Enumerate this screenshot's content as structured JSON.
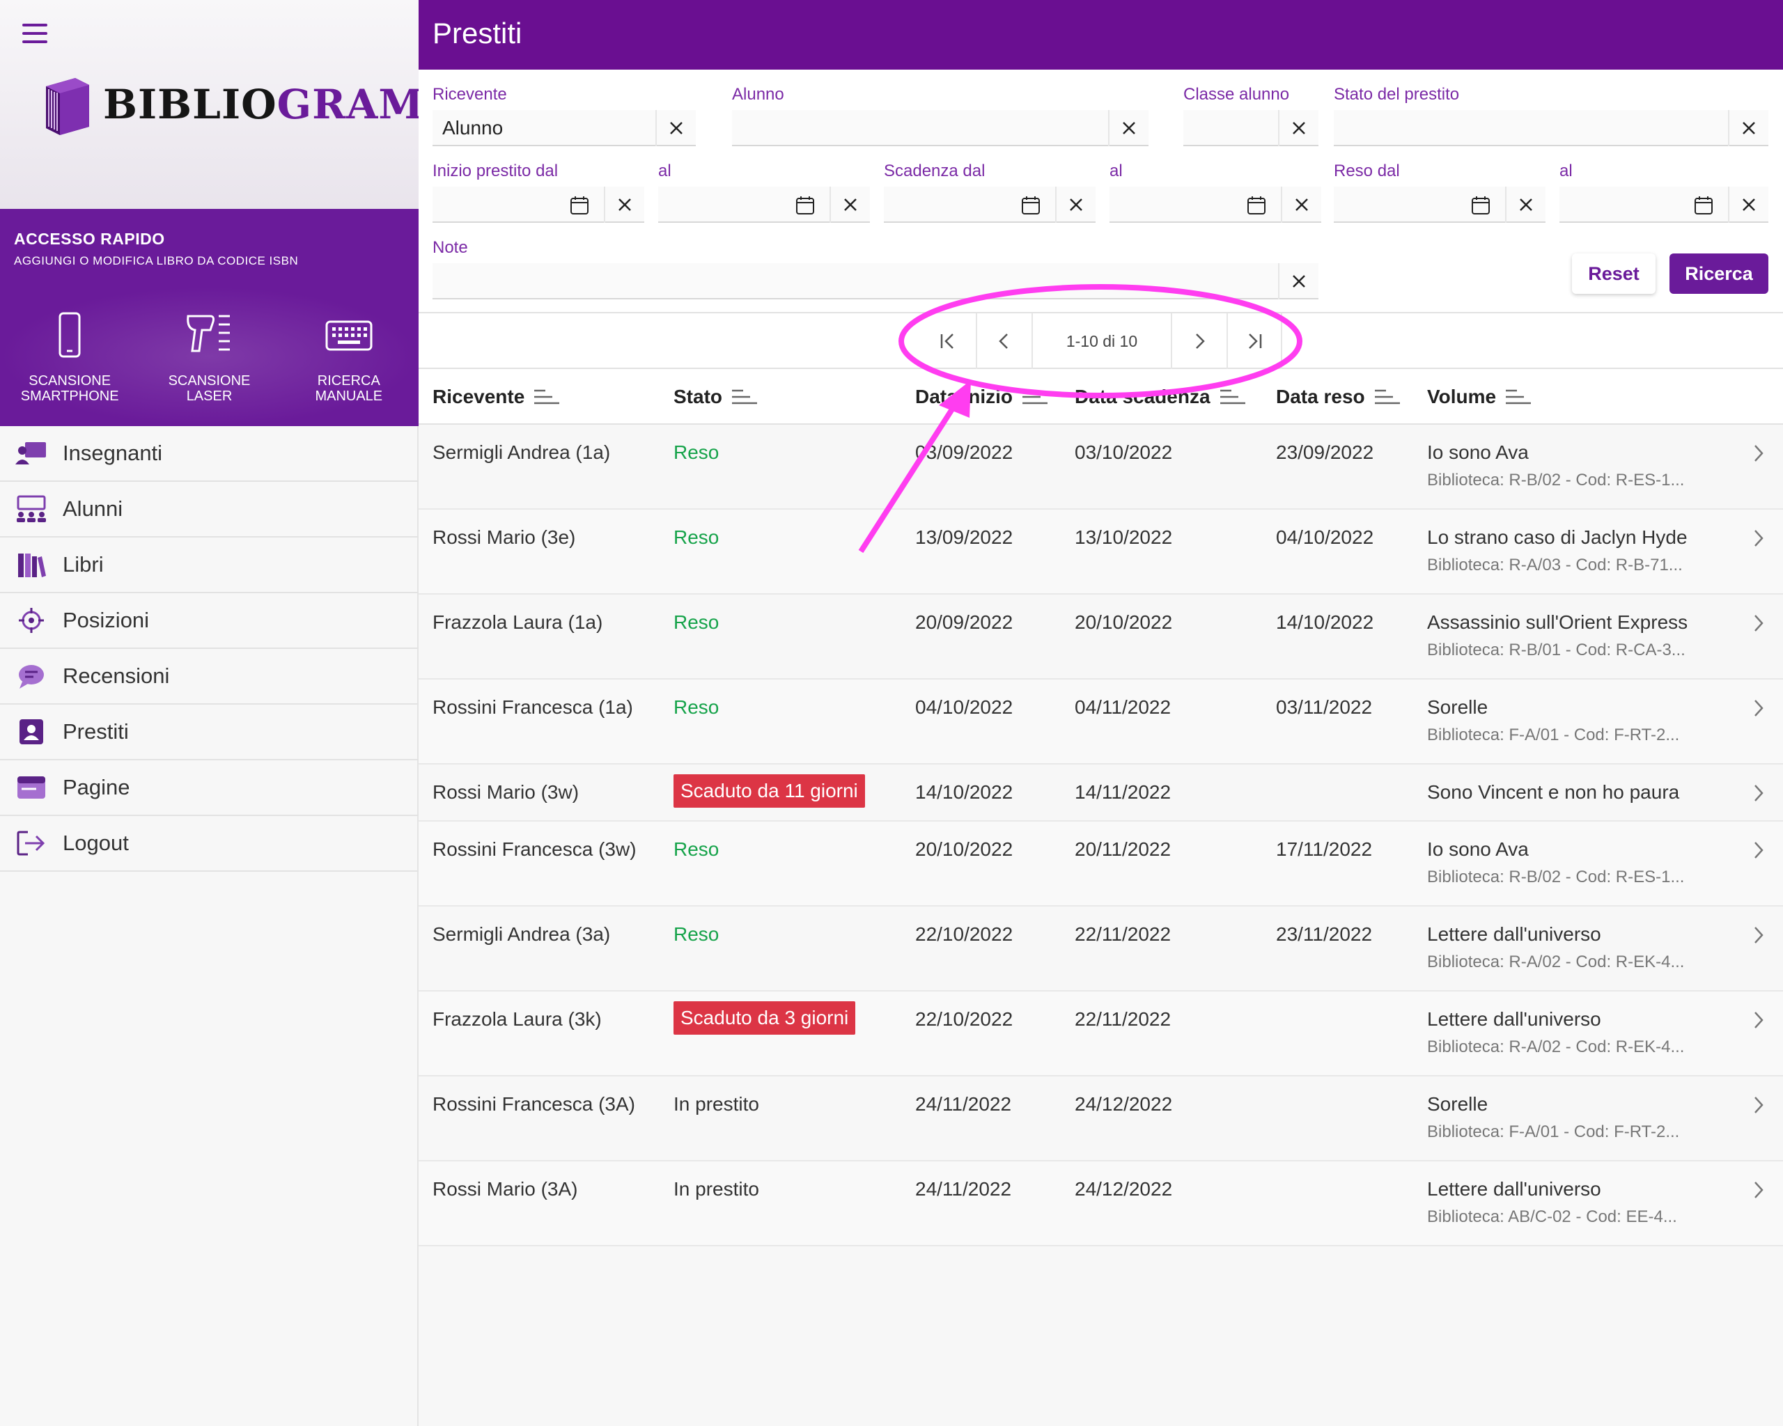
{
  "app": {
    "name_part1": "BIBLIO",
    "name_part2": "GRAM"
  },
  "quick_access": {
    "title": "ACCESSO RAPIDO",
    "subtitle": "AGGIUNGI O MODIFICA LIBRO DA CODICE ISBN",
    "buttons": [
      {
        "label": "SCANSIONE SMARTPHONE",
        "icon": "smartphone-icon"
      },
      {
        "label": "SCANSIONE LASER",
        "icon": "barcode-scanner-icon"
      },
      {
        "label": "RICERCA MANUALE",
        "icon": "keyboard-icon"
      }
    ]
  },
  "nav": [
    {
      "label": "Insegnanti",
      "icon": "teacher-icon"
    },
    {
      "label": "Alunni",
      "icon": "students-icon"
    },
    {
      "label": "Libri",
      "icon": "books-icon"
    },
    {
      "label": "Posizioni",
      "icon": "location-icon"
    },
    {
      "label": "Recensioni",
      "icon": "chat-icon"
    },
    {
      "label": "Prestiti",
      "icon": "loan-icon"
    },
    {
      "label": "Pagine",
      "icon": "page-icon"
    },
    {
      "label": "Logout",
      "icon": "logout-icon"
    }
  ],
  "page": {
    "title": "Prestiti"
  },
  "filters": {
    "ricevente": {
      "label": "Ricevente",
      "value": "Alunno"
    },
    "alunno": {
      "label": "Alunno",
      "value": ""
    },
    "classe": {
      "label": "Classe alunno",
      "value": ""
    },
    "stato": {
      "label": "Stato del prestito",
      "value": ""
    },
    "inizio_dal": {
      "label": "Inizio prestito dal",
      "value": ""
    },
    "inizio_al": {
      "label": "al",
      "value": ""
    },
    "scadenza_dal": {
      "label": "Scadenza dal",
      "value": ""
    },
    "scadenza_al": {
      "label": "al",
      "value": ""
    },
    "reso_dal": {
      "label": "Reso dal",
      "value": ""
    },
    "reso_al": {
      "label": "al",
      "value": ""
    },
    "note": {
      "label": "Note",
      "value": ""
    },
    "reset_label": "Reset",
    "search_label": "Ricerca"
  },
  "pager": {
    "info": "1-10 di 10"
  },
  "table": {
    "columns": [
      "Ricevente",
      "Stato",
      "Data inizio",
      "Data scadenza",
      "Data reso",
      "Volume"
    ],
    "rows": [
      {
        "ricevente": "Sermigli Andrea (1a)",
        "stato": "Reso",
        "stato_type": "ok",
        "inizio": "03/09/2022",
        "scadenza": "03/10/2022",
        "reso": "23/09/2022",
        "volume": "Io sono Ava",
        "volume_sub": "Biblioteca: R-B/02 - Cod: R-ES-1..."
      },
      {
        "ricevente": "Rossi Mario (3e)",
        "stato": "Reso",
        "stato_type": "ok",
        "inizio": "13/09/2022",
        "scadenza": "13/10/2022",
        "reso": "04/10/2022",
        "volume": "Lo strano caso di Jaclyn Hyde",
        "volume_sub": "Biblioteca: R-A/03 - Cod: R-B-71..."
      },
      {
        "ricevente": "Frazzola Laura (1a)",
        "stato": "Reso",
        "stato_type": "ok",
        "inizio": "20/09/2022",
        "scadenza": "20/10/2022",
        "reso": "14/10/2022",
        "volume": "Assassinio sull'Orient Express",
        "volume_sub": "Biblioteca: R-B/01 - Cod: R-CA-3..."
      },
      {
        "ricevente": "Rossini Francesca (1a)",
        "stato": "Reso",
        "stato_type": "ok",
        "inizio": "04/10/2022",
        "scadenza": "04/11/2022",
        "reso": "03/11/2022",
        "volume": "Sorelle",
        "volume_sub": "Biblioteca: F-A/01 - Cod: F-RT-2..."
      },
      {
        "ricevente": "Rossi Mario (3w)",
        "stato": "Scaduto da 11 giorni",
        "stato_type": "late",
        "inizio": "14/10/2022",
        "scadenza": "14/11/2022",
        "reso": "",
        "volume": "Sono Vincent e non ho paura",
        "volume_sub": ""
      },
      {
        "ricevente": "Rossini Francesca (3w)",
        "stato": "Reso",
        "stato_type": "ok",
        "inizio": "20/10/2022",
        "scadenza": "20/11/2022",
        "reso": "17/11/2022",
        "volume": "Io sono Ava",
        "volume_sub": "Biblioteca: R-B/02 - Cod: R-ES-1..."
      },
      {
        "ricevente": "Sermigli Andrea (3a)",
        "stato": "Reso",
        "stato_type": "ok",
        "inizio": "22/10/2022",
        "scadenza": "22/11/2022",
        "reso": "23/11/2022",
        "volume": "Lettere dall'universo",
        "volume_sub": "Biblioteca: R-A/02 - Cod: R-EK-4..."
      },
      {
        "ricevente": "Frazzola Laura (3k)",
        "stato": "Scaduto da 3 giorni",
        "stato_type": "late",
        "inizio": "22/10/2022",
        "scadenza": "22/11/2022",
        "reso": "",
        "volume": "Lettere dall'universo",
        "volume_sub": "Biblioteca: R-A/02 - Cod: R-EK-4..."
      },
      {
        "ricevente": "Rossini Francesca (3A)",
        "stato": "In prestito",
        "stato_type": "active",
        "inizio": "24/11/2022",
        "scadenza": "24/12/2022",
        "reso": "",
        "volume": "Sorelle",
        "volume_sub": "Biblioteca: F-A/01 - Cod: F-RT-2..."
      },
      {
        "ricevente": "Rossi Mario (3A)",
        "stato": "In prestito",
        "stato_type": "active",
        "inizio": "24/11/2022",
        "scadenza": "24/12/2022",
        "reso": "",
        "volume": "Lettere dall'universo",
        "volume_sub": "Biblioteca: AB/C-02 - Cod: EE-4..."
      }
    ]
  },
  "colors": {
    "primary": "#6a1b9a",
    "topbar": "#6a0f91",
    "ok": "#16a34a",
    "late": "#dc3545",
    "annotation": "#ff3df0"
  }
}
